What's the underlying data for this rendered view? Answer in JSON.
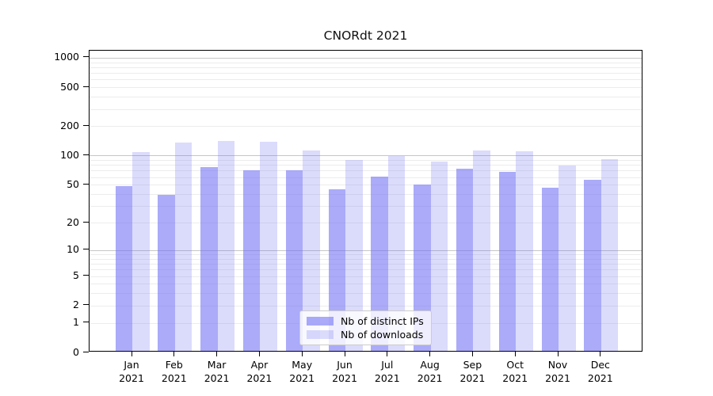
{
  "title": "CNORdt 2021",
  "chart_data": {
    "type": "bar",
    "title": "CNORdt 2021",
    "categories": [
      "Jan 2021",
      "Feb 2021",
      "Mar 2021",
      "Apr 2021",
      "May 2021",
      "Jun 2021",
      "Jul 2021",
      "Aug 2021",
      "Sep 2021",
      "Oct 2021",
      "Nov 2021",
      "Dec 2021"
    ],
    "series": [
      {
        "name": "Nb of distinct IPs",
        "color": "rgba(110,110,245,0.58)",
        "values": [
          47,
          38,
          74,
          68,
          68,
          43,
          59,
          48,
          70,
          66,
          45,
          54
        ]
      },
      {
        "name": "Nb of downloads",
        "color": "rgba(110,110,245,0.25)",
        "values": [
          104,
          130,
          136,
          133,
          108,
          87,
          95,
          83,
          108,
          107,
          76,
          88
        ]
      }
    ],
    "xlabel": "",
    "ylabel": "",
    "yscale": "log1p",
    "yticks": [
      0,
      1,
      2,
      5,
      10,
      20,
      50,
      100,
      200,
      500,
      1000
    ],
    "ylim": [
      0,
      1200
    ],
    "grid": true,
    "legend_position": "lower center"
  },
  "colors": {
    "bar_distinct_ips": "rgba(110,110,245,0.58)",
    "bar_downloads": "rgba(110,110,245,0.25)",
    "major_grid": "#c6c6c6",
    "minor_grid": "#ececec",
    "axis": "#000000"
  }
}
